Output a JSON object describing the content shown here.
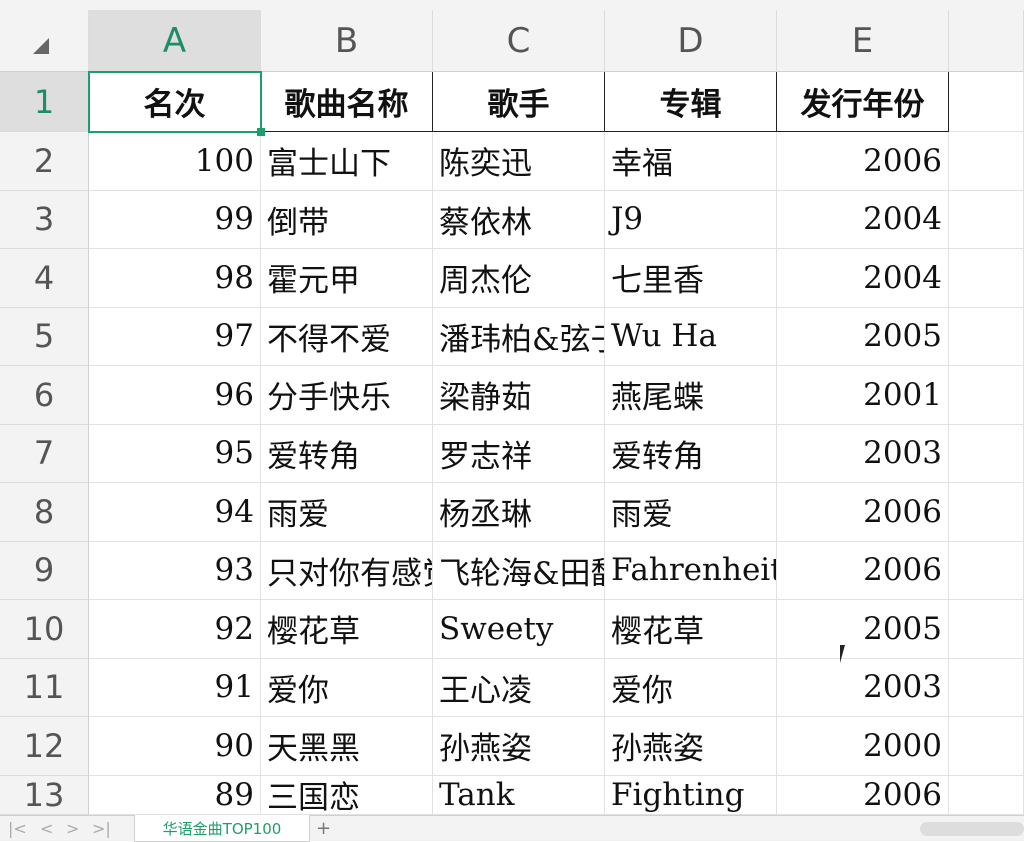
{
  "columns": [
    "A",
    "B",
    "C",
    "D",
    "E"
  ],
  "rows": [
    "1",
    "2",
    "3",
    "4",
    "5",
    "6",
    "7",
    "8",
    "9",
    "10",
    "11",
    "12",
    "13"
  ],
  "header": [
    "名次",
    "歌曲名称",
    "歌手",
    "专辑",
    "发行年份"
  ],
  "data": [
    [
      "100",
      "富士山下",
      "陈奕迅",
      "幸福",
      "2006"
    ],
    [
      "99",
      "倒带",
      "蔡依林",
      "J9",
      "2004"
    ],
    [
      "98",
      "霍元甲",
      "周杰伦",
      "七里香",
      "2004"
    ],
    [
      "97",
      "不得不爱",
      "潘玮柏&弦子",
      "Wu Ha",
      "2005"
    ],
    [
      "96",
      "分手快乐",
      "梁静茹",
      "燕尾蝶",
      "2001"
    ],
    [
      "95",
      "爱转角",
      "罗志祥",
      "爱转角",
      "2003"
    ],
    [
      "94",
      "雨爱",
      "杨丞琳",
      "雨爱",
      "2006"
    ],
    [
      "93",
      "只对你有感觉",
      "飞轮海&田馥甄",
      "Fahrenheit",
      "2006"
    ],
    [
      "92",
      "樱花草",
      "Sweety",
      "樱花草",
      "2005"
    ],
    [
      "91",
      "爱你",
      "王心凌",
      "爱你",
      "2003"
    ],
    [
      "90",
      "天黑黑",
      "孙燕姿",
      "孙燕姿",
      "2000"
    ],
    [
      "89",
      "三国恋",
      "Tank",
      "Fighting",
      "2006"
    ]
  ],
  "sheet_tab": "华语金曲TOP100",
  "add_sheet": "+",
  "nav": [
    "|<",
    "<",
    ">",
    ">|"
  ],
  "accent": "#1e9e6a"
}
